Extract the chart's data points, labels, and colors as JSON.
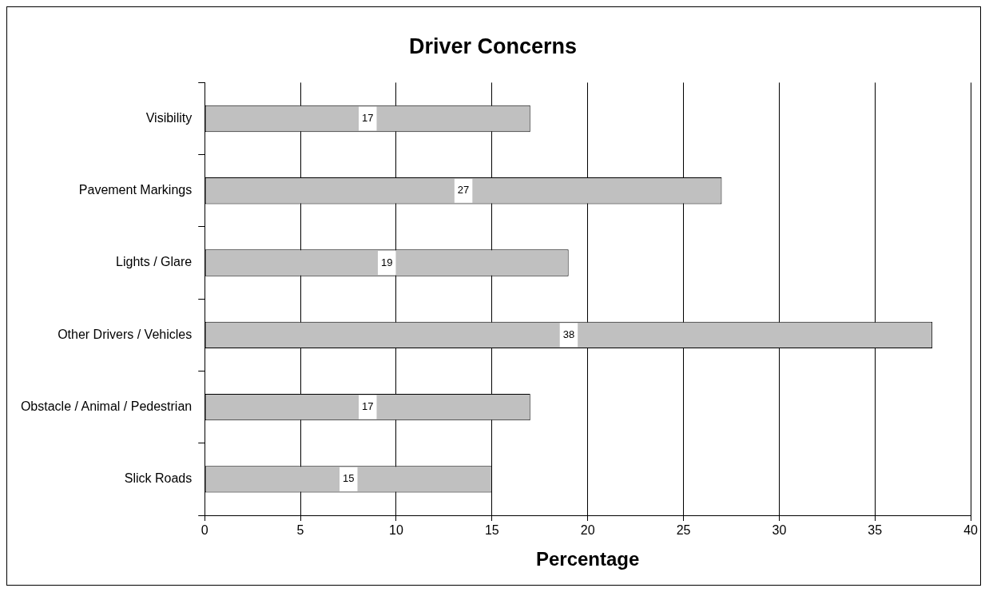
{
  "chart_data": {
    "type": "bar",
    "orientation": "horizontal",
    "title": "Driver Concerns",
    "xlabel": "Percentage",
    "categories": [
      "Visibility",
      "Pavement Markings",
      "Lights / Glare",
      "Other Drivers / Vehicles",
      "Obstacle / Animal / Pedestrian",
      "Slick Roads"
    ],
    "values": [
      17,
      27,
      19,
      38,
      17,
      15
    ],
    "color": "#c0c0c0",
    "xlim": [
      0,
      40
    ],
    "xticks": [
      0,
      5,
      10,
      15,
      20,
      25,
      30,
      35,
      40
    ],
    "grid": "x",
    "data_labels": true,
    "legend": false
  }
}
